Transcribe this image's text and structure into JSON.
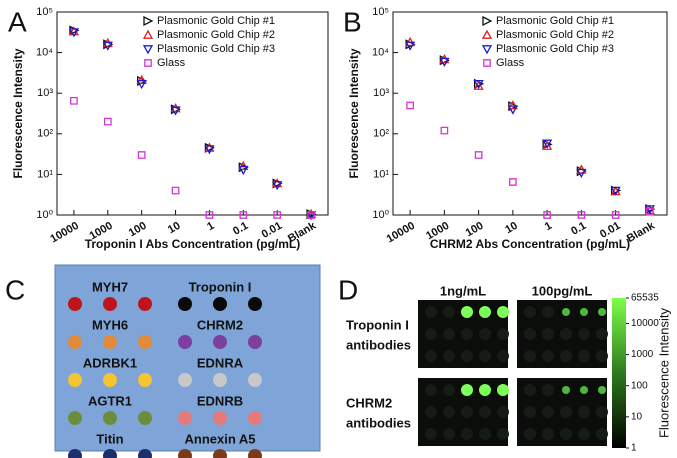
{
  "chart_data": [
    {
      "type": "scatter",
      "panel_label": "A",
      "x_label": "Troponin I Abs Concentration (pg/mL)",
      "y_label": "Fluorescence Intensity",
      "categories": [
        "10000",
        "1000",
        "100",
        "10",
        "1",
        "0.1",
        "0.01",
        "Blank"
      ],
      "series": [
        {
          "name": "Plasmonic Gold Chip #1",
          "color": "#111111",
          "marker": "triangle-right",
          "values": [
            35000,
            16000,
            2000,
            400,
            45,
            15,
            6,
            1.05
          ]
        },
        {
          "name": "Plasmonic Gold Chip #2",
          "color": "#e0201c",
          "marker": "triangle-up",
          "values": [
            33000,
            17000,
            2100,
            420,
            45,
            16,
            6,
            1.05
          ]
        },
        {
          "name": "Plasmonic Gold Chip #3",
          "color": "#1c1ccc",
          "marker": "triangle-down",
          "values": [
            32000,
            15000,
            1700,
            380,
            42,
            13,
            5.5,
            1.0
          ]
        },
        {
          "name": "Glass",
          "color": "#d633d6",
          "marker": "square",
          "values": [
            650,
            200,
            30,
            4,
            1.0,
            1.0,
            1.0,
            1.0
          ]
        }
      ],
      "ylim": [
        1,
        100000
      ],
      "log_y": true,
      "legend": "upper right",
      "yticks": [
        {
          "value": 1,
          "label": "10⁰"
        },
        {
          "value": 10,
          "label": "10¹"
        },
        {
          "value": 100,
          "label": "10²"
        },
        {
          "value": 1000,
          "label": "10³"
        },
        {
          "value": 10000,
          "label": "10⁴"
        },
        {
          "value": 100000,
          "label": "10⁵"
        }
      ]
    },
    {
      "type": "scatter",
      "panel_label": "B",
      "x_label": "CHRM2 Abs Concentration (pg/mL)",
      "y_label": "Fluorescence Intensity",
      "categories": [
        "10000",
        "1000",
        "100",
        "10",
        "1",
        "0.1",
        "0.01",
        "Blank"
      ],
      "series": [
        {
          "name": "Plasmonic Gold Chip #1",
          "color": "#111111",
          "marker": "triangle-right",
          "values": [
            16000,
            6500,
            1700,
            480,
            55,
            12,
            4,
            1.4
          ]
        },
        {
          "name": "Plasmonic Gold Chip #2",
          "color": "#e0201c",
          "marker": "triangle-up",
          "values": [
            18000,
            6800,
            1500,
            500,
            50,
            13,
            3.8,
            1.3
          ]
        },
        {
          "name": "Plasmonic Gold Chip #3",
          "color": "#1c1ccc",
          "marker": "triangle-down",
          "values": [
            15000,
            6000,
            1700,
            400,
            58,
            11,
            4,
            1.4
          ]
        },
        {
          "name": "Glass",
          "color": "#d633d6",
          "marker": "square",
          "values": [
            500,
            120,
            30,
            6.5,
            1.0,
            1.0,
            1.0,
            1.2
          ]
        }
      ],
      "ylim": [
        1,
        100000
      ],
      "log_y": true,
      "legend": "upper right",
      "yticks": [
        {
          "value": 1,
          "label": "10⁰"
        },
        {
          "value": 10,
          "label": "10¹"
        },
        {
          "value": 100,
          "label": "10²"
        },
        {
          "value": 1000,
          "label": "10³"
        },
        {
          "value": 10000,
          "label": "10⁴"
        },
        {
          "value": 100000,
          "label": "10⁵"
        }
      ]
    }
  ],
  "panel_c": {
    "label": "C",
    "items": [
      {
        "name": "MYH7",
        "color": "#c0141c"
      },
      {
        "name": "MYH6",
        "color": "#e08a3a"
      },
      {
        "name": "ADRBK1",
        "color": "#f5c431"
      },
      {
        "name": "AGTR1",
        "color": "#6b8e3c"
      },
      {
        "name": "Titin",
        "color": "#1c2e6b"
      },
      {
        "name": "Troponin I",
        "color": "#0a0a0a"
      },
      {
        "name": "CHRM2",
        "color": "#7b3fa0"
      },
      {
        "name": "EDNRA",
        "color": "#c8c8c8"
      },
      {
        "name": "EDNRB",
        "color": "#e57a7a"
      },
      {
        "name": "Annexin A5",
        "color": "#7a3b1a"
      }
    ]
  },
  "panel_d": {
    "label": "D",
    "columns": [
      "1ng/mL",
      "100pg/mL"
    ],
    "rows": [
      [
        "Troponin I",
        "antibodies"
      ],
      [
        "CHRM2",
        "antibodies"
      ]
    ],
    "colorbar": {
      "label": "Fluorescence Intensity",
      "lim": [
        1,
        65535
      ],
      "log": true,
      "ticks": [
        1,
        10,
        100,
        1000,
        10000,
        65535
      ]
    }
  }
}
